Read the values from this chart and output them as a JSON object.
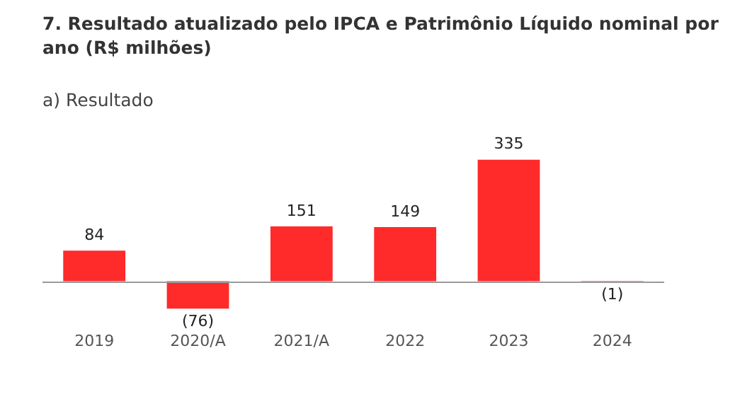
{
  "chart_data": {
    "type": "bar",
    "title": "7. Resultado atualizado pelo IPCA e Patrimônio Líquido nominal por ano (R$ milhões)",
    "subtitle": "a) Resultado",
    "categories": [
      "2019",
      "2020/A",
      "2021/A",
      "2022",
      "2023",
      "2024"
    ],
    "values": [
      84,
      -76,
      151,
      149,
      335,
      -1
    ],
    "value_labels": [
      "84",
      "(76)",
      "151",
      "149",
      "335",
      "(1)"
    ],
    "color": "#ff2a2a",
    "tick_labels": "x",
    "grid": false,
    "legend": false
  }
}
